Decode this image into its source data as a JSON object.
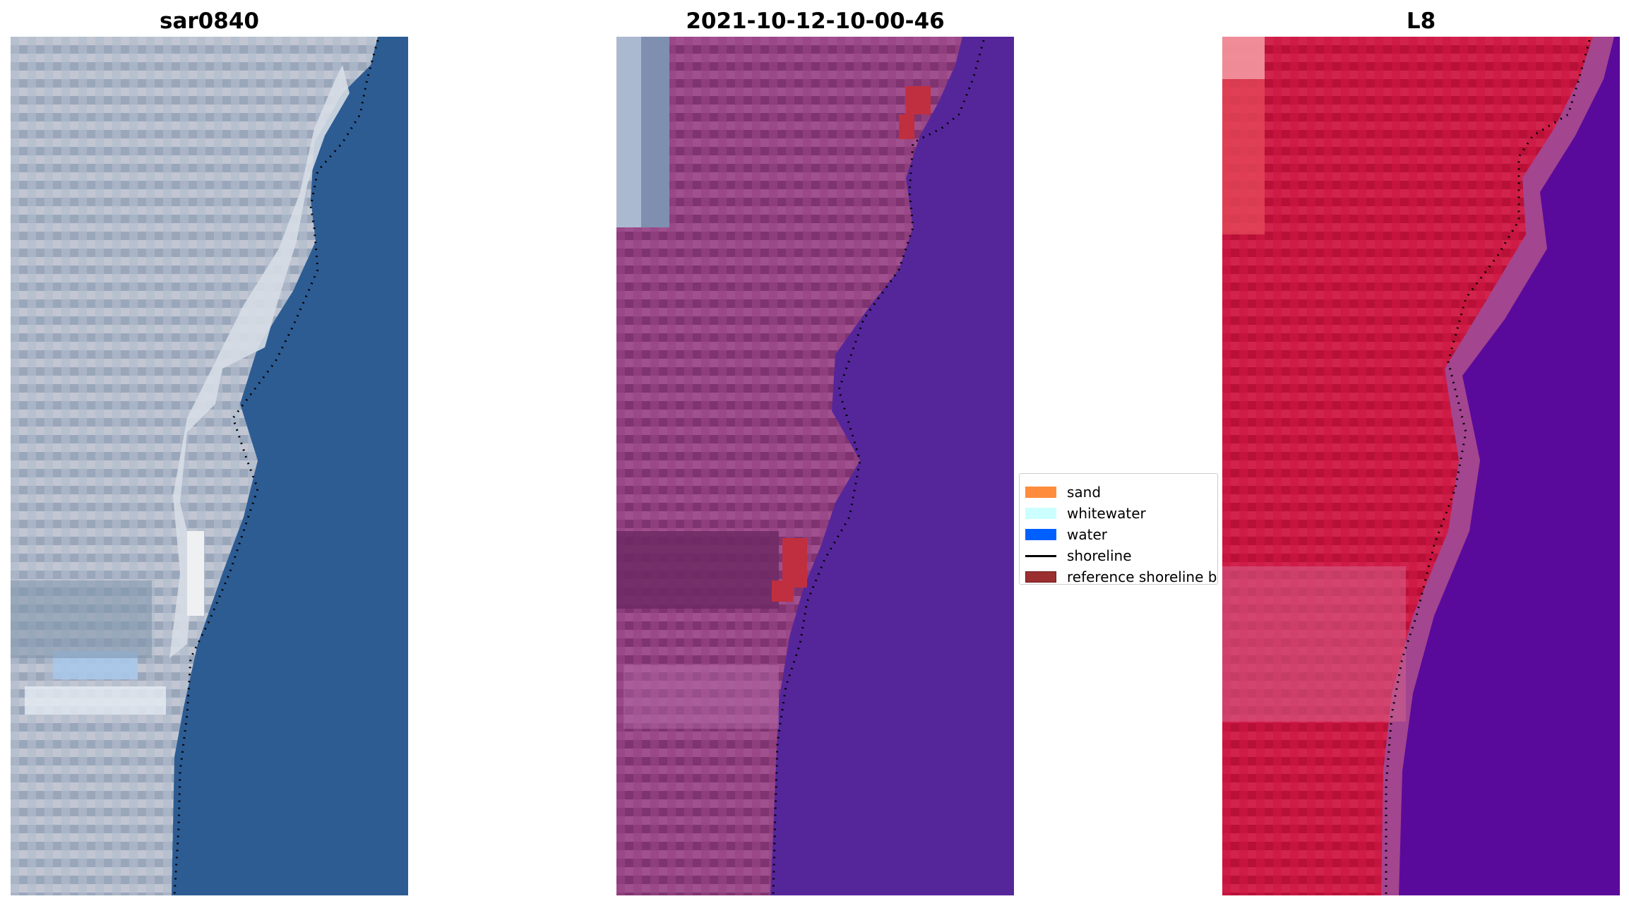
{
  "panels": [
    {
      "title": "sar0840",
      "kind": "true-color satellite image"
    },
    {
      "title": "2021-10-12-10-00-46",
      "kind": "false-color classified image"
    },
    {
      "title": "L8",
      "kind": "false-color satellite image"
    }
  ],
  "legend": {
    "items": [
      {
        "label": "sand",
        "color": "#ff8c3c",
        "type": "patch"
      },
      {
        "label": "whitewater",
        "color": "#ccffff",
        "type": "patch"
      },
      {
        "label": "water",
        "color": "#0060ff",
        "type": "patch"
      },
      {
        "label": "shoreline",
        "color": "#000000",
        "type": "line"
      },
      {
        "label": "reference shoreline buffer",
        "color": "#9b2f2f",
        "type": "patch"
      }
    ]
  },
  "colors": {
    "panel1_land": "#a7b3c6",
    "panel1_water": "#2c5b92",
    "panel1_whitewater": "#eef0f2",
    "panel2_land": "#8d3c7c",
    "panel2_water": "#55269a",
    "panel2_buffer": "#b8333f",
    "panel3_land": "#c6123f",
    "panel3_water": "#5a0a9a",
    "shoreline_dots": "#000000"
  }
}
